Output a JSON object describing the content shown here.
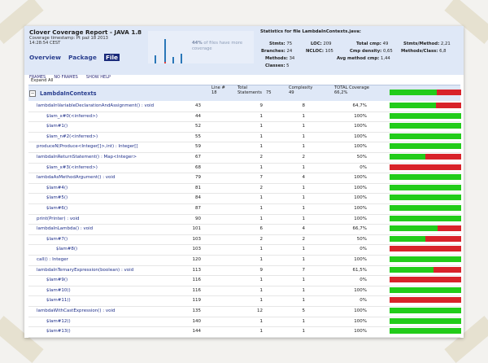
{
  "app": {
    "title": "Clover Coverage Report - JAVA 1.8",
    "timestamp_line1": "Coverage timestamp: Pt paź 18 2013",
    "timestamp_line2": "14:28:54 CEST"
  },
  "nav": {
    "overview": "Overview",
    "package": "Package",
    "file": "File"
  },
  "frames_links": {
    "frames": "FRAMES",
    "no_frames": "NO FRAMES",
    "show_help": "SHOW HELP"
  },
  "summary": {
    "percent": "44%",
    "text": "of files have more coverage"
  },
  "stats": {
    "title": "Statistics for file LambdaInContexts.java:",
    "stmts_label": "Stmts:",
    "stmts": "75",
    "loc_label": "LOC:",
    "loc": "209",
    "branches_label": "Branches:",
    "branches": "24",
    "ncloc_label": "NCLOC:",
    "ncloc": "105",
    "methods_label": "Methods:",
    "methods": "34",
    "classes_label": "Classes:",
    "classes": "5",
    "total_cmp_label": "Total cmp:",
    "total_cmp": "49",
    "cmp_density_label": "Cmp density:",
    "cmp_density": "0,65",
    "avg_method_cmp_label": "Avg method cmp:",
    "avg_method_cmp": "1,44",
    "stmts_method_label": "Stmts/Method:",
    "stmts_method": "2,21",
    "methods_class_label": "Methods/Class:",
    "methods_class": "6,8"
  },
  "expand_all": "Expand All",
  "colors": {
    "covered": "#22cc1a",
    "uncovered": "#d8232a",
    "header_bg": "#dfe8f7",
    "link": "#1e2f8a"
  },
  "table": {
    "class_name": "LambdaInContexts",
    "line_label": "Line #",
    "line_value": "18",
    "total_label": "Total",
    "statements_label": "Statements",
    "statements_value": "75",
    "complexity_label": "Complexity",
    "complexity_value": "49",
    "coverage_label": "TOTAL Coverage",
    "coverage_value": "66,2%",
    "coverage_fraction": 0.662,
    "rows": [
      {
        "name": "lambdaInVariableDeclarationAndAssignment() : void",
        "indent": 0,
        "line": "43",
        "statements": "9",
        "complexity": "8",
        "coverage": "64,7%",
        "fraction": 0.647
      },
      {
        "name": "$lam_x#0(<inferred>)",
        "indent": 1,
        "line": "44",
        "statements": "1",
        "complexity": "1",
        "coverage": "100%",
        "fraction": 1.0
      },
      {
        "name": "$lam#1()",
        "indent": 1,
        "line": "52",
        "statements": "1",
        "complexity": "1",
        "coverage": "100%",
        "fraction": 1.0
      },
      {
        "name": "$lam_n#2(<inferred>)",
        "indent": 1,
        "line": "55",
        "statements": "1",
        "complexity": "1",
        "coverage": "100%",
        "fraction": 1.0
      },
      {
        "name": "produceN(Produce<Integer[]>,int) : Integer[]",
        "indent": 0,
        "line": "59",
        "statements": "1",
        "complexity": "1",
        "coverage": "100%",
        "fraction": 1.0
      },
      {
        "name": "lambdaInReturnStatement() : Map<Integer>",
        "indent": 0,
        "line": "67",
        "statements": "2",
        "complexity": "2",
        "coverage": "50%",
        "fraction": 0.5
      },
      {
        "name": "$lam_x#3(<inferred>)",
        "indent": 1,
        "line": "68",
        "statements": "1",
        "complexity": "1",
        "coverage": "0%",
        "fraction": 0.0
      },
      {
        "name": "lambdaAsMethodArgument() : void",
        "indent": 0,
        "line": "79",
        "statements": "7",
        "complexity": "4",
        "coverage": "100%",
        "fraction": 1.0
      },
      {
        "name": "$lam#4()",
        "indent": 1,
        "line": "81",
        "statements": "2",
        "complexity": "1",
        "coverage": "100%",
        "fraction": 1.0
      },
      {
        "name": "$lam#5()",
        "indent": 1,
        "line": "84",
        "statements": "1",
        "complexity": "1",
        "coverage": "100%",
        "fraction": 1.0
      },
      {
        "name": "$lam#6()",
        "indent": 1,
        "line": "87",
        "statements": "1",
        "complexity": "1",
        "coverage": "100%",
        "fraction": 1.0
      },
      {
        "name": "print(Printer) : void",
        "indent": 0,
        "line": "90",
        "statements": "1",
        "complexity": "1",
        "coverage": "100%",
        "fraction": 1.0
      },
      {
        "name": "lambdaInLambda() : void",
        "indent": 0,
        "line": "101",
        "statements": "6",
        "complexity": "4",
        "coverage": "66,7%",
        "fraction": 0.667
      },
      {
        "name": "$lam#7()",
        "indent": 1,
        "line": "103",
        "statements": "2",
        "complexity": "2",
        "coverage": "50%",
        "fraction": 0.5
      },
      {
        "name": "$lam#8()",
        "indent": 2,
        "line": "103",
        "statements": "1",
        "complexity": "1",
        "coverage": "0%",
        "fraction": 0.0
      },
      {
        "name": "call() : Integer",
        "indent": 0,
        "line": "120",
        "statements": "1",
        "complexity": "1",
        "coverage": "100%",
        "fraction": 1.0
      },
      {
        "name": "lambdaInTernaryExpression(boolean) : void",
        "indent": 0,
        "line": "113",
        "statements": "9",
        "complexity": "7",
        "coverage": "61,5%",
        "fraction": 0.615
      },
      {
        "name": "$lam#9()",
        "indent": 1,
        "line": "116",
        "statements": "1",
        "complexity": "1",
        "coverage": "0%",
        "fraction": 0.0
      },
      {
        "name": "$lam#10()",
        "indent": 1,
        "line": "116",
        "statements": "1",
        "complexity": "1",
        "coverage": "100%",
        "fraction": 1.0
      },
      {
        "name": "$lam#11()",
        "indent": 1,
        "line": "119",
        "statements": "1",
        "complexity": "1",
        "coverage": "0%",
        "fraction": 0.0
      },
      {
        "name": "lambdaWithCastExpression() : void",
        "indent": 0,
        "line": "135",
        "statements": "12",
        "complexity": "5",
        "coverage": "100%",
        "fraction": 1.0
      },
      {
        "name": "$lam#12()",
        "indent": 1,
        "line": "140",
        "statements": "1",
        "complexity": "1",
        "coverage": "100%",
        "fraction": 1.0
      },
      {
        "name": "$lam#13()",
        "indent": 1,
        "line": "144",
        "statements": "1",
        "complexity": "1",
        "coverage": "100%",
        "fraction": 1.0
      },
      {
        "name": "$lam#14()",
        "indent": 1,
        "line": "148",
        "statements": "1",
        "complexity": "1",
        "coverage": "100%",
        "fraction": 1.0
      },
      {
        "name": "$lam#15()",
        "indent": 1,
        "line": "152",
        "statements": "1",
        "complexity": "1",
        "coverage": "100%",
        "fraction": 1.0
      }
    ]
  }
}
